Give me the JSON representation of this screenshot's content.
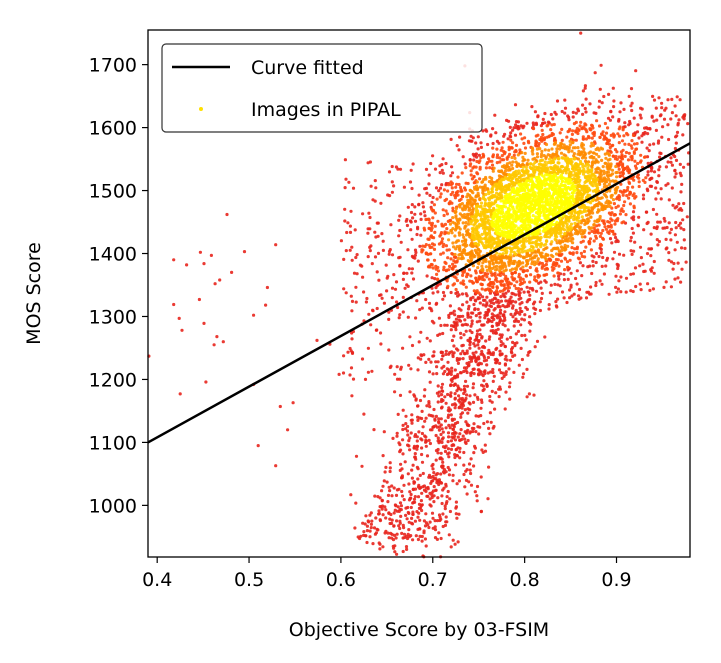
{
  "chart_data": {
    "type": "scatter",
    "xlabel": "Objective Score by 03-FSIM",
    "ylabel": "MOS Score",
    "xlim": [
      0.39,
      0.98
    ],
    "ylim": [
      918,
      1755
    ],
    "x_ticks": [
      0.4,
      0.5,
      0.6,
      0.7,
      0.8,
      0.9
    ],
    "x_tick_labels": [
      "0.4",
      "0.5",
      "0.6",
      "0.7",
      "0.8",
      "0.9"
    ],
    "y_ticks": [
      1000,
      1100,
      1200,
      1300,
      1400,
      1500,
      1600,
      1700
    ],
    "y_tick_labels": [
      "1000",
      "1100",
      "1200",
      "1300",
      "1400",
      "1500",
      "1600",
      "1700"
    ],
    "grid": false,
    "legend_position": "top-left",
    "legend": [
      {
        "label": "Curve fitted",
        "marker": "line",
        "color": "#000000"
      },
      {
        "label": "Images in PIPAL",
        "marker": "dot",
        "color": "#ffe000"
      }
    ],
    "fit_line": {
      "x": [
        0.39,
        0.98
      ],
      "y": [
        1100,
        1575
      ]
    },
    "density_colors": [
      "#e8251d",
      "#ff4a10",
      "#ff8c00",
      "#ffc800",
      "#ffff00"
    ],
    "cluster": {
      "center": [
        0.81,
        1475
      ],
      "main_sd": [
        0.055,
        55
      ],
      "tail_center": [
        0.715,
        1170
      ],
      "tail_sd": [
        0.03,
        75
      ],
      "tail_range": [
        940,
        1340
      ]
    },
    "outliers": [
      [
        0.418,
        1390
      ],
      [
        0.432,
        1382
      ],
      [
        0.447,
        1402
      ],
      [
        0.459,
        1397
      ],
      [
        0.476,
        1462
      ],
      [
        0.495,
        1403
      ],
      [
        0.529,
        1414
      ],
      [
        0.481,
        1370
      ],
      [
        0.468,
        1358
      ],
      [
        0.451,
        1384
      ],
      [
        0.463,
        1352
      ],
      [
        0.446,
        1327
      ],
      [
        0.418,
        1319
      ],
      [
        0.424,
        1297
      ],
      [
        0.427,
        1278
      ],
      [
        0.451,
        1289
      ],
      [
        0.465,
        1268
      ],
      [
        0.472,
        1260
      ],
      [
        0.462,
        1255
      ],
      [
        0.52,
        1346
      ],
      [
        0.518,
        1318
      ],
      [
        0.505,
        1302
      ],
      [
        0.453,
        1196
      ],
      [
        0.425,
        1177
      ],
      [
        0.391,
        1237
      ],
      [
        0.505,
        1192
      ],
      [
        0.51,
        1095
      ],
      [
        0.529,
        1063
      ],
      [
        0.534,
        1157
      ],
      [
        0.548,
        1163
      ],
      [
        0.542,
        1120
      ],
      [
        0.574,
        1262
      ],
      [
        0.588,
        1256
      ],
      [
        0.603,
        1344
      ],
      [
        0.598,
        1208
      ],
      [
        0.612,
        1174
      ],
      [
        0.625,
        1145
      ],
      [
        0.617,
        1078
      ],
      [
        0.623,
        1062
      ],
      [
        0.638,
        980
      ],
      [
        0.645,
        1008
      ],
      [
        0.657,
        935
      ],
      [
        0.676,
        952
      ],
      [
        0.705,
        946
      ],
      [
        0.72,
        934
      ],
      [
        0.735,
        1698
      ],
      [
        0.861,
        1750
      ],
      [
        0.703,
        1534
      ],
      [
        0.662,
        1534
      ],
      [
        0.653,
        1492
      ]
    ]
  }
}
